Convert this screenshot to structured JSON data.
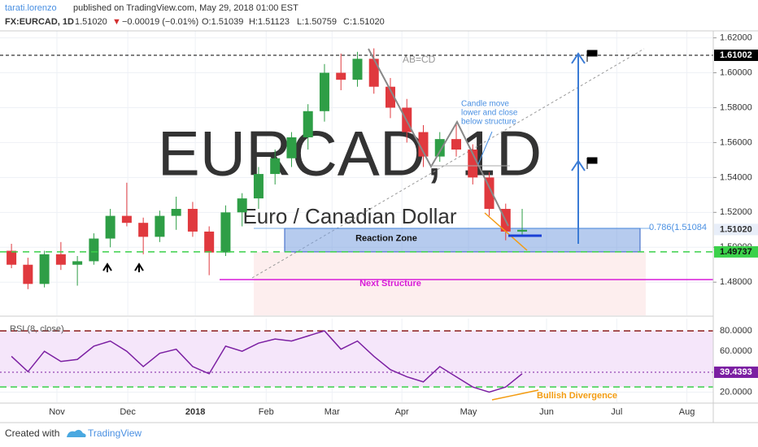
{
  "chart_data": {
    "type": "candlestick",
    "header": {
      "author": "tarati.lorenzo",
      "published": "published on TradingView.com, May 29, 2018 01:00 EST",
      "symbol": "FX:EURCAD, 1D",
      "last": "1.51020",
      "arrow": "▼",
      "change": "−0.00019 (−0.01%)",
      "open": "O:1.51039",
      "high": "H:1.51123",
      "low": "L:1.50759",
      "close": "C:1.51020"
    },
    "watermark": "EURCAD, 1D",
    "watermark_sub": "Euro / Canadian Dollar",
    "grid": true,
    "up_color": "#2e9e46",
    "down_color": "#e0393e",
    "xlim": [
      0,
      215
    ],
    "xticks": [
      {
        "value": 15.8,
        "label": "Nov"
      },
      {
        "value": 37.3,
        "label": "Dec"
      },
      {
        "value": 57.8,
        "label": "2018"
      },
      {
        "value": 79.3,
        "label": "Feb"
      },
      {
        "value": 99.3,
        "label": "Mar"
      },
      {
        "value": 120.5,
        "label": "Apr"
      },
      {
        "value": 140.7,
        "label": "May"
      },
      {
        "value": 164.4,
        "label": "Jun"
      },
      {
        "value": 185.7,
        "label": "Jul"
      },
      {
        "value": 207,
        "label": "Aug"
      }
    ],
    "ylim": [
      1.461,
      1.624
    ],
    "yticks": [
      {
        "value": 1.48,
        "label": "1.48000"
      },
      {
        "value": 1.5,
        "label": "1.50000"
      },
      {
        "value": 1.52,
        "label": "1.52000"
      },
      {
        "value": 1.54,
        "label": "1.54000"
      },
      {
        "value": 1.56,
        "label": "1.56000"
      },
      {
        "value": 1.58,
        "label": "1.58000"
      },
      {
        "value": 1.6,
        "label": "1.60000"
      },
      {
        "value": 1.62,
        "label": "1.62000"
      }
    ],
    "candles": {
      "x": [
        2,
        7,
        12,
        17,
        22,
        27,
        32,
        37,
        42,
        47,
        52,
        57,
        62,
        67,
        72,
        77,
        82,
        87,
        92,
        97,
        102,
        107,
        112,
        117,
        122,
        127,
        132,
        137,
        142,
        147,
        152,
        157
      ],
      "open": [
        1.498,
        1.49,
        1.479,
        1.496,
        1.49,
        1.492,
        1.505,
        1.518,
        1.514,
        1.506,
        1.518,
        1.522,
        1.509,
        1.497,
        1.52,
        1.528,
        1.542,
        1.551,
        1.563,
        1.578,
        1.6,
        1.596,
        1.608,
        1.592,
        1.58,
        1.566,
        1.552,
        1.562,
        1.556,
        1.54,
        1.522,
        1.509
      ],
      "high": [
        1.502,
        1.494,
        1.498,
        1.503,
        1.495,
        1.508,
        1.522,
        1.537,
        1.517,
        1.521,
        1.529,
        1.526,
        1.512,
        1.524,
        1.531,
        1.546,
        1.556,
        1.566,
        1.582,
        1.605,
        1.611,
        1.612,
        1.614,
        1.597,
        1.585,
        1.57,
        1.566,
        1.571,
        1.559,
        1.543,
        1.525,
        1.522
      ],
      "low": [
        1.488,
        1.476,
        1.477,
        1.487,
        1.478,
        1.49,
        1.5,
        1.512,
        1.496,
        1.503,
        1.51,
        1.506,
        1.484,
        1.495,
        1.512,
        1.522,
        1.536,
        1.546,
        1.556,
        1.572,
        1.59,
        1.592,
        1.588,
        1.574,
        1.56,
        1.546,
        1.549,
        1.552,
        1.536,
        1.518,
        1.504,
        1.506
      ],
      "close": [
        1.49,
        1.479,
        1.496,
        1.49,
        1.492,
        1.505,
        1.518,
        1.514,
        1.506,
        1.518,
        1.522,
        1.509,
        1.497,
        1.52,
        1.528,
        1.542,
        1.551,
        1.563,
        1.578,
        1.6,
        1.596,
        1.608,
        1.592,
        1.58,
        1.566,
        1.552,
        1.562,
        1.556,
        1.54,
        1.522,
        1.509,
        1.51
      ]
    },
    "levels": [
      {
        "value": 1.61002,
        "color": "#000000",
        "tag": "#000000"
      },
      {
        "value": 1.5102,
        "label": "1.51020",
        "color": null,
        "tag": "#e8eef9"
      },
      {
        "value": 1.49737,
        "color": "#3bd14a",
        "tag": "#3bd14a"
      }
    ],
    "fib": {
      "value": 1.51084,
      "label": "0.786(1.51084"
    },
    "reaction_zone": {
      "label": "Reaction Zone",
      "low": 1.49737,
      "high": 1.51084
    },
    "next_structure": {
      "label": "Next Structure",
      "value": 1.4815
    },
    "annotations": [
      "AB=CD",
      "Candle move",
      "lower and close",
      "below structure"
    ],
    "rsi": {
      "title": "RSI (8, close)",
      "ylim": [
        10,
        92
      ],
      "yticks": [
        {
          "value": 20,
          "label": "20.0000"
        },
        {
          "value": 60,
          "label": "60.0000"
        },
        {
          "value": 80,
          "label": "80.0000"
        }
      ],
      "upper": 80,
      "lower": 25,
      "current": 39.4393,
      "color": "#7b1fa2",
      "values": [
        55,
        40,
        60,
        50,
        52,
        65,
        70,
        60,
        45,
        58,
        62,
        45,
        38,
        65,
        60,
        68,
        72,
        70,
        75,
        80,
        62,
        70,
        55,
        42,
        35,
        30,
        45,
        35,
        25,
        20,
        25,
        38
      ],
      "divergence": "Bullish Divergence"
    },
    "footer": {
      "created": "Created with",
      "brand": "TradingView"
    }
  }
}
